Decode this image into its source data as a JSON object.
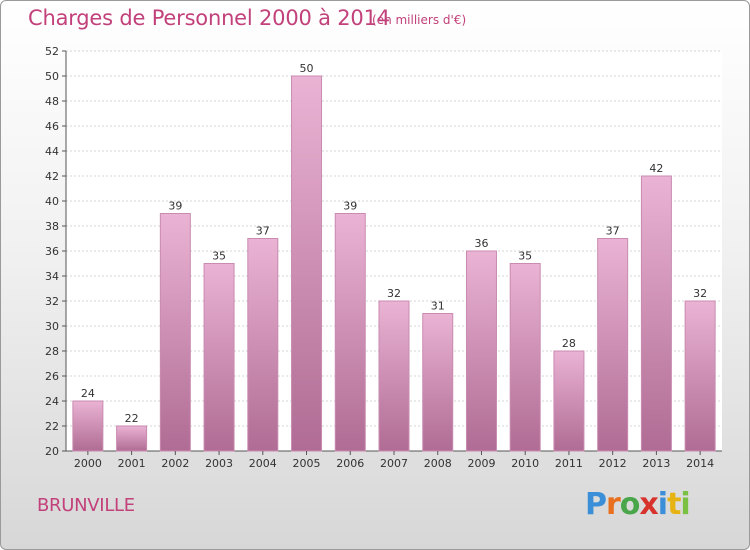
{
  "title": "Charges de Personnel 2000 à 2014",
  "subtitle": "(en milliers d'€)",
  "town": "BRUNVILLE",
  "logo": {
    "letters": [
      "P",
      "r",
      "o",
      "x",
      "i",
      "t",
      "i"
    ],
    "colors": [
      "#3a8fd8",
      "#e8701f",
      "#4aa64a",
      "#d7322c",
      "#3a8fd8",
      "#e6b312",
      "#7ac043"
    ]
  },
  "colors": {
    "bar_top": "#eab3d4",
    "bar_bottom": "#b06c94",
    "accent": "#c2417a"
  },
  "chart_data": {
    "type": "bar",
    "title": "Charges de Personnel 2000 à 2014",
    "subtitle": "(en milliers d'€)",
    "categories": [
      "2000",
      "2001",
      "2002",
      "2003",
      "2004",
      "2005",
      "2006",
      "2007",
      "2008",
      "2009",
      "2010",
      "2011",
      "2012",
      "2013",
      "2014"
    ],
    "values": [
      24,
      22,
      39,
      35,
      37,
      50,
      39,
      32,
      31,
      36,
      35,
      28,
      37,
      42,
      32
    ],
    "ylim": [
      20,
      52
    ],
    "yticks": [
      20,
      22,
      24,
      26,
      28,
      30,
      32,
      34,
      36,
      38,
      40,
      42,
      44,
      46,
      48,
      50,
      52
    ],
    "grid": true,
    "data_labels": true,
    "xlabel": "",
    "ylabel": ""
  }
}
